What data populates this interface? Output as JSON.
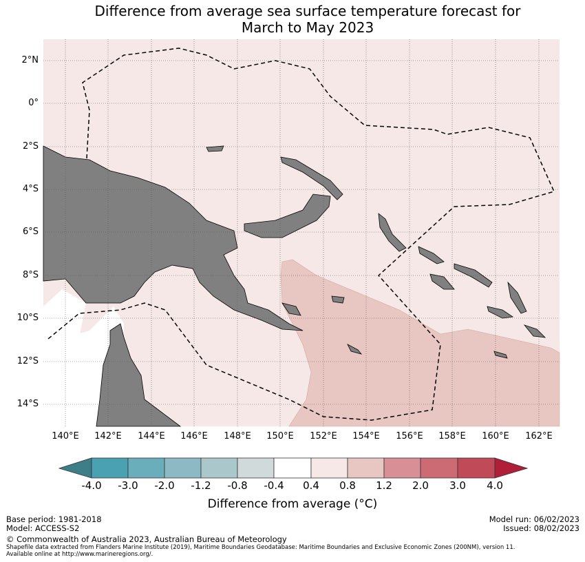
{
  "title": [
    "Difference from average sea surface temperature forecast for",
    "March to May 2023"
  ],
  "lat_labels": [
    "2°N",
    "0°",
    "2°S",
    "4°S",
    "6°S",
    "8°S",
    "10°S",
    "12°S",
    "14°S"
  ],
  "lon_labels": [
    "140°E",
    "142°E",
    "144°E",
    "146°E",
    "148°E",
    "150°E",
    "152°E",
    "154°E",
    "156°E",
    "158°E",
    "160°E",
    "162°E"
  ],
  "colorbar": {
    "ticks": [
      "-4.0",
      "-3.0",
      "-2.0",
      "-1.2",
      "-0.8",
      "-0.4",
      "0.4",
      "0.8",
      "1.2",
      "2.0",
      "3.0",
      "4.0"
    ],
    "colors": [
      "#4aa1b2",
      "#6aaebb",
      "#8cb9c4",
      "#aac8cc",
      "#d1dadb",
      "#ffffff",
      "#f5e8e6",
      "#e8c6c1",
      "#d88f96",
      "#cc6b73",
      "#c04a57"
    ],
    "low_extend_color": "#3e7e88",
    "high_extend_color": "#b01e38",
    "label": "Difference from average (°C)"
  },
  "map_colors": {
    "background": "#f5e8e6",
    "warmer": "#e8c6c1",
    "land": "#808080",
    "near_average": "#ffffff"
  },
  "footer": {
    "base_period": "Base period: 1981-2018",
    "model": "Model: ACCESS-S2",
    "model_run": "Model run: 06/02/2023",
    "issued": "Issued: 08/02/2023",
    "copyright": "© Commonwealth of Australia 2023, Australian Bureau of Meteorology",
    "source1": "Shapefile data extracted from Flanders Marine Institute (2019), Maritime Boundaries Geodatabase: Maritime Boundaries and Exclusive Economic Zones (200NM), version 11.",
    "source2": "Available online at http://www.marineregions.org/."
  }
}
